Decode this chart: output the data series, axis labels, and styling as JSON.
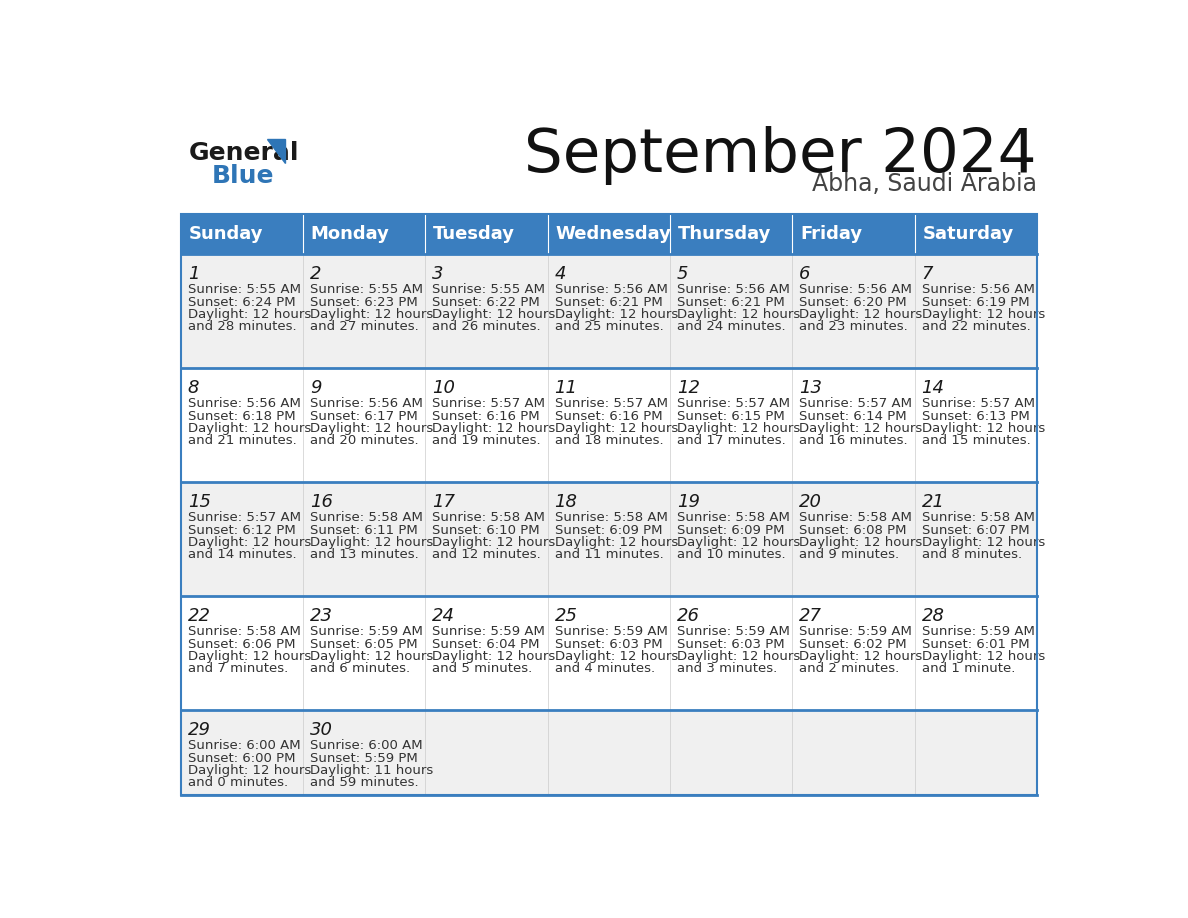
{
  "title": "September 2024",
  "subtitle": "Abha, Saudi Arabia",
  "header_bg": "#3a7ebf",
  "header_text_color": "#ffffff",
  "row_bg_odd": "#f0f0f0",
  "row_bg_even": "#ffffff",
  "days_of_week": [
    "Sunday",
    "Monday",
    "Tuesday",
    "Wednesday",
    "Thursday",
    "Friday",
    "Saturday"
  ],
  "calendar": [
    [
      {
        "day": 1,
        "sunrise": "5:55 AM",
        "sunset": "6:24 PM",
        "daylight_line1": "Daylight: 12 hours",
        "daylight_line2": "and 28 minutes."
      },
      {
        "day": 2,
        "sunrise": "5:55 AM",
        "sunset": "6:23 PM",
        "daylight_line1": "Daylight: 12 hours",
        "daylight_line2": "and 27 minutes."
      },
      {
        "day": 3,
        "sunrise": "5:55 AM",
        "sunset": "6:22 PM",
        "daylight_line1": "Daylight: 12 hours",
        "daylight_line2": "and 26 minutes."
      },
      {
        "day": 4,
        "sunrise": "5:56 AM",
        "sunset": "6:21 PM",
        "daylight_line1": "Daylight: 12 hours",
        "daylight_line2": "and 25 minutes."
      },
      {
        "day": 5,
        "sunrise": "5:56 AM",
        "sunset": "6:21 PM",
        "daylight_line1": "Daylight: 12 hours",
        "daylight_line2": "and 24 minutes."
      },
      {
        "day": 6,
        "sunrise": "5:56 AM",
        "sunset": "6:20 PM",
        "daylight_line1": "Daylight: 12 hours",
        "daylight_line2": "and 23 minutes."
      },
      {
        "day": 7,
        "sunrise": "5:56 AM",
        "sunset": "6:19 PM",
        "daylight_line1": "Daylight: 12 hours",
        "daylight_line2": "and 22 minutes."
      }
    ],
    [
      {
        "day": 8,
        "sunrise": "5:56 AM",
        "sunset": "6:18 PM",
        "daylight_line1": "Daylight: 12 hours",
        "daylight_line2": "and 21 minutes."
      },
      {
        "day": 9,
        "sunrise": "5:56 AM",
        "sunset": "6:17 PM",
        "daylight_line1": "Daylight: 12 hours",
        "daylight_line2": "and 20 minutes."
      },
      {
        "day": 10,
        "sunrise": "5:57 AM",
        "sunset": "6:16 PM",
        "daylight_line1": "Daylight: 12 hours",
        "daylight_line2": "and 19 minutes."
      },
      {
        "day": 11,
        "sunrise": "5:57 AM",
        "sunset": "6:16 PM",
        "daylight_line1": "Daylight: 12 hours",
        "daylight_line2": "and 18 minutes."
      },
      {
        "day": 12,
        "sunrise": "5:57 AM",
        "sunset": "6:15 PM",
        "daylight_line1": "Daylight: 12 hours",
        "daylight_line2": "and 17 minutes."
      },
      {
        "day": 13,
        "sunrise": "5:57 AM",
        "sunset": "6:14 PM",
        "daylight_line1": "Daylight: 12 hours",
        "daylight_line2": "and 16 minutes."
      },
      {
        "day": 14,
        "sunrise": "5:57 AM",
        "sunset": "6:13 PM",
        "daylight_line1": "Daylight: 12 hours",
        "daylight_line2": "and 15 minutes."
      }
    ],
    [
      {
        "day": 15,
        "sunrise": "5:57 AM",
        "sunset": "6:12 PM",
        "daylight_line1": "Daylight: 12 hours",
        "daylight_line2": "and 14 minutes."
      },
      {
        "day": 16,
        "sunrise": "5:58 AM",
        "sunset": "6:11 PM",
        "daylight_line1": "Daylight: 12 hours",
        "daylight_line2": "and 13 minutes."
      },
      {
        "day": 17,
        "sunrise": "5:58 AM",
        "sunset": "6:10 PM",
        "daylight_line1": "Daylight: 12 hours",
        "daylight_line2": "and 12 minutes."
      },
      {
        "day": 18,
        "sunrise": "5:58 AM",
        "sunset": "6:09 PM",
        "daylight_line1": "Daylight: 12 hours",
        "daylight_line2": "and 11 minutes."
      },
      {
        "day": 19,
        "sunrise": "5:58 AM",
        "sunset": "6:09 PM",
        "daylight_line1": "Daylight: 12 hours",
        "daylight_line2": "and 10 minutes."
      },
      {
        "day": 20,
        "sunrise": "5:58 AM",
        "sunset": "6:08 PM",
        "daylight_line1": "Daylight: 12 hours",
        "daylight_line2": "and 9 minutes."
      },
      {
        "day": 21,
        "sunrise": "5:58 AM",
        "sunset": "6:07 PM",
        "daylight_line1": "Daylight: 12 hours",
        "daylight_line2": "and 8 minutes."
      }
    ],
    [
      {
        "day": 22,
        "sunrise": "5:58 AM",
        "sunset": "6:06 PM",
        "daylight_line1": "Daylight: 12 hours",
        "daylight_line2": "and 7 minutes."
      },
      {
        "day": 23,
        "sunrise": "5:59 AM",
        "sunset": "6:05 PM",
        "daylight_line1": "Daylight: 12 hours",
        "daylight_line2": "and 6 minutes."
      },
      {
        "day": 24,
        "sunrise": "5:59 AM",
        "sunset": "6:04 PM",
        "daylight_line1": "Daylight: 12 hours",
        "daylight_line2": "and 5 minutes."
      },
      {
        "day": 25,
        "sunrise": "5:59 AM",
        "sunset": "6:03 PM",
        "daylight_line1": "Daylight: 12 hours",
        "daylight_line2": "and 4 minutes."
      },
      {
        "day": 26,
        "sunrise": "5:59 AM",
        "sunset": "6:03 PM",
        "daylight_line1": "Daylight: 12 hours",
        "daylight_line2": "and 3 minutes."
      },
      {
        "day": 27,
        "sunrise": "5:59 AM",
        "sunset": "6:02 PM",
        "daylight_line1": "Daylight: 12 hours",
        "daylight_line2": "and 2 minutes."
      },
      {
        "day": 28,
        "sunrise": "5:59 AM",
        "sunset": "6:01 PM",
        "daylight_line1": "Daylight: 12 hours",
        "daylight_line2": "and 1 minute."
      }
    ],
    [
      {
        "day": 29,
        "sunrise": "6:00 AM",
        "sunset": "6:00 PM",
        "daylight_line1": "Daylight: 12 hours",
        "daylight_line2": "and 0 minutes."
      },
      {
        "day": 30,
        "sunrise": "6:00 AM",
        "sunset": "5:59 PM",
        "daylight_line1": "Daylight: 11 hours",
        "daylight_line2": "and 59 minutes."
      },
      null,
      null,
      null,
      null,
      null
    ]
  ],
  "logo_general_color": "#1a1a1a",
  "logo_blue_color": "#2e75b6",
  "divider_color": "#3a7ebf"
}
